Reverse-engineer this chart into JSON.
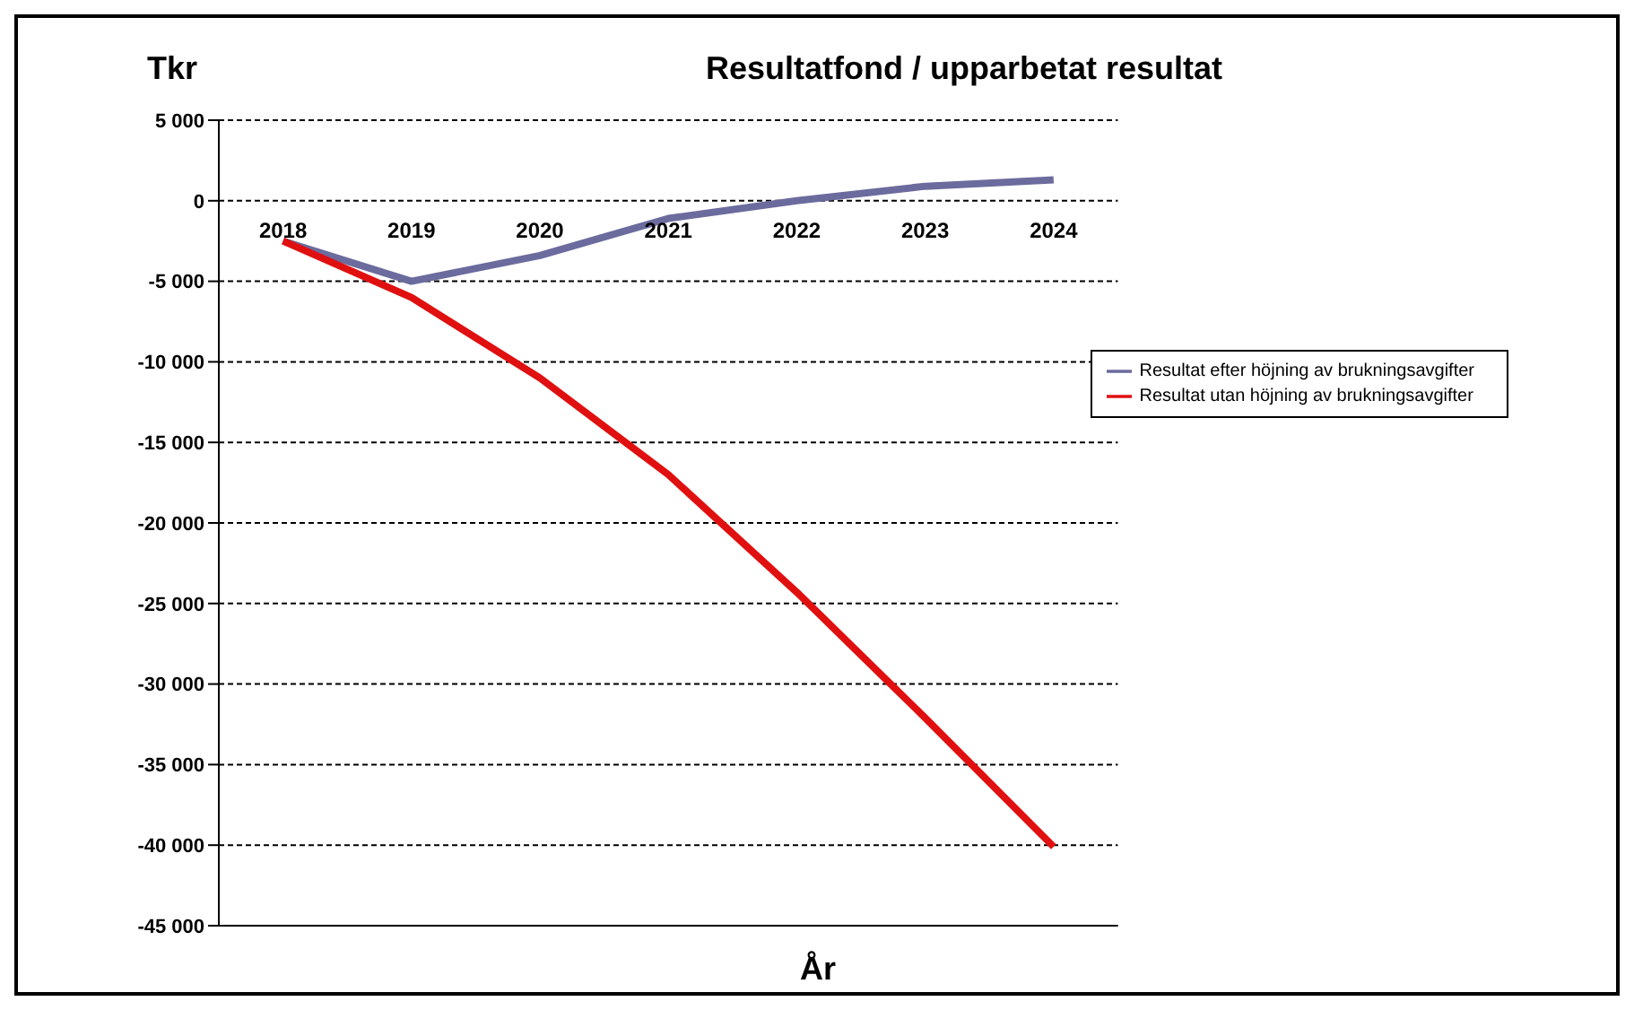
{
  "chart_data": {
    "type": "line",
    "title": "Resultatfond / upparbetat resultat",
    "ylabel": "Tkr",
    "xlabel": "År",
    "categories": [
      "2018",
      "2019",
      "2020",
      "2021",
      "2022",
      "2023",
      "2024"
    ],
    "series": [
      {
        "name": "Resultat efter höjning av brukningsavgifter",
        "color": "#6b6b9e",
        "values": [
          -2500,
          -5000,
          -3400,
          -1100,
          0,
          900,
          1300
        ]
      },
      {
        "name": "Resultat utan höjning av brukningsavgifter",
        "color": "#e01010",
        "values": [
          -2500,
          -6000,
          -11000,
          -17000,
          -24300,
          -32100,
          -40100
        ]
      }
    ],
    "ylim": [
      -45000,
      5000
    ],
    "yticks": [
      {
        "value": 5000,
        "label": "5 000"
      },
      0,
      {
        "value": -5000,
        "label": "-5 000"
      },
      {
        "value": -10000,
        "label": "-10 000"
      },
      {
        "value": -15000,
        "label": "-15 000"
      },
      {
        "value": -20000,
        "label": "-20 000"
      },
      {
        "value": -25000,
        "label": "-25 000"
      },
      {
        "value": -30000,
        "label": "-30 000"
      },
      {
        "value": -35000,
        "label": "-35 000"
      },
      {
        "value": -40000,
        "label": "-40 000"
      },
      {
        "value": -45000,
        "label": "-45 000"
      }
    ],
    "grid": "y",
    "legend": "right",
    "marker": "none",
    "line_style": "solid"
  }
}
